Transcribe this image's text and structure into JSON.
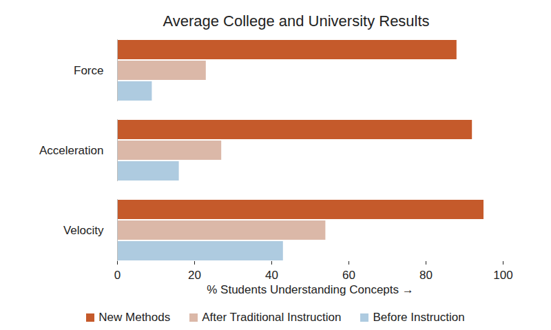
{
  "chart_data": {
    "type": "bar",
    "orientation": "horizontal",
    "title": "Average College and University Results",
    "xlabel": "% Students Understanding Concepts",
    "categories": [
      "Force",
      "Acceleration",
      "Velocity"
    ],
    "series": [
      {
        "name": "New Methods",
        "color": "#c55a2b",
        "values": [
          88,
          92,
          95
        ]
      },
      {
        "name": "After Traditional Instruction",
        "color": "#dbb8a8",
        "values": [
          23,
          27,
          54
        ]
      },
      {
        "name": "Before Instruction",
        "color": "#aecbe0",
        "values": [
          9,
          16,
          43
        ]
      }
    ],
    "xlim": [
      0,
      100
    ],
    "xticks": [
      0,
      20,
      40,
      60,
      80,
      100
    ],
    "grid": false,
    "legend": "bottom"
  }
}
